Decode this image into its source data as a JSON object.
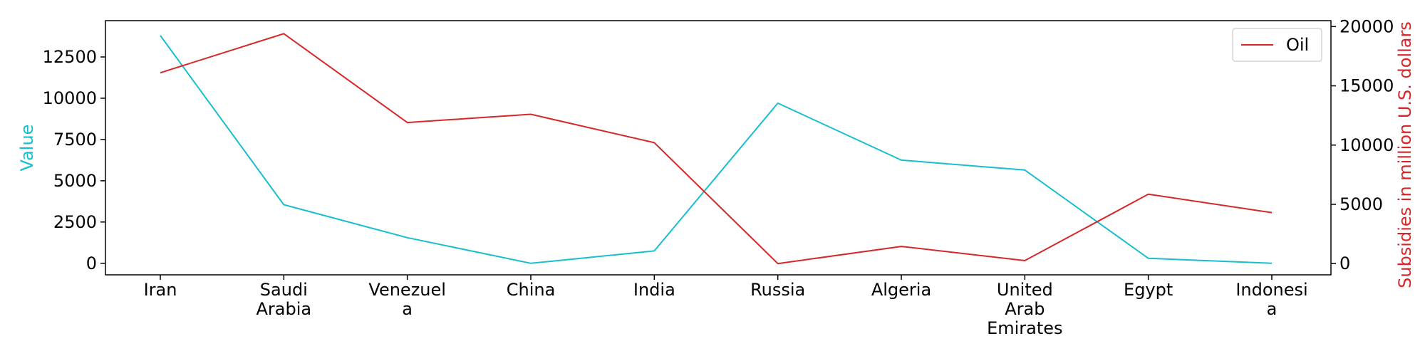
{
  "chart_data": {
    "type": "line",
    "categories": [
      "Iran",
      "Saudi\nArabia",
      "Venezuel\na",
      "China",
      "India",
      "Russia",
      "Algeria",
      "United\nArab\nEmirates",
      "Egypt",
      "Indonesi\na"
    ],
    "series": [
      {
        "name": "",
        "axis": "left",
        "color": "#17becf",
        "values": [
          13800,
          3550,
          1550,
          0,
          750,
          9700,
          6250,
          5650,
          300,
          0
        ]
      },
      {
        "name": "Oil",
        "axis": "right",
        "color": "#d62728",
        "values": [
          16100,
          19400,
          11900,
          12600,
          10200,
          0,
          1450,
          250,
          5850,
          4300
        ]
      }
    ],
    "ylabel_left": "Value",
    "ylabel_right": "Subsidies in million U.S. dollars",
    "ylim_left": [
      -700,
      14700
    ],
    "ylim_right": [
      -950,
      20500
    ],
    "yticks_left": [
      "0",
      "2500",
      "5000",
      "7500",
      "10000",
      "12500"
    ],
    "yticks_right": [
      "0",
      "5000",
      "10000",
      "15000",
      "20000"
    ],
    "legend": {
      "label": "Oil",
      "position": "top-right"
    },
    "left_axis_color": "#17becf",
    "right_axis_color": "#d62728",
    "grid": false
  }
}
